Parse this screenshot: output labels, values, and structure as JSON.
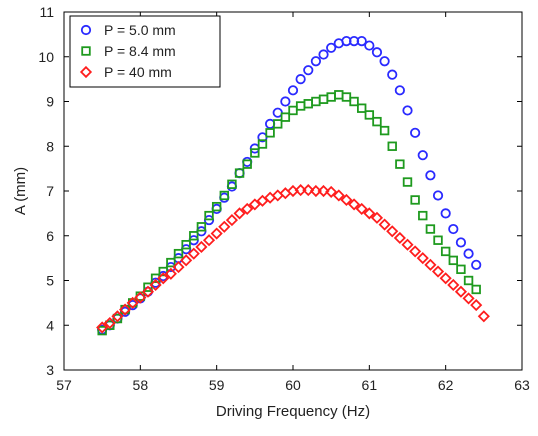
{
  "chart_data": {
    "type": "scatter",
    "title": "",
    "xlabel": "Driving Frequency (Hz)",
    "ylabel": "A (mm)",
    "xlim": [
      57,
      63
    ],
    "ylim": [
      3,
      11
    ],
    "xticks": [
      "57",
      "58",
      "59",
      "60",
      "61",
      "62",
      "63"
    ],
    "yticks": [
      "3",
      "4",
      "5",
      "6",
      "7",
      "8",
      "9",
      "10",
      "11"
    ],
    "grid": false,
    "legend_position": "top-left",
    "series": [
      {
        "name": "P = 5.0 mm",
        "marker": "circle",
        "color": "#2a2aff",
        "points": [
          [
            57.5,
            3.9
          ],
          [
            57.6,
            4.0
          ],
          [
            57.7,
            4.15
          ],
          [
            57.8,
            4.3
          ],
          [
            57.9,
            4.45
          ],
          [
            58.0,
            4.6
          ],
          [
            58.1,
            4.75
          ],
          [
            58.2,
            4.95
          ],
          [
            58.3,
            5.1
          ],
          [
            58.4,
            5.3
          ],
          [
            58.5,
            5.5
          ],
          [
            58.6,
            5.7
          ],
          [
            58.7,
            5.9
          ],
          [
            58.8,
            6.1
          ],
          [
            58.9,
            6.35
          ],
          [
            59.0,
            6.6
          ],
          [
            59.1,
            6.85
          ],
          [
            59.2,
            7.1
          ],
          [
            59.3,
            7.4
          ],
          [
            59.4,
            7.65
          ],
          [
            59.5,
            7.95
          ],
          [
            59.6,
            8.2
          ],
          [
            59.7,
            8.5
          ],
          [
            59.8,
            8.75
          ],
          [
            59.9,
            9.0
          ],
          [
            60.0,
            9.25
          ],
          [
            60.1,
            9.5
          ],
          [
            60.2,
            9.7
          ],
          [
            60.3,
            9.9
          ],
          [
            60.4,
            10.05
          ],
          [
            60.5,
            10.2
          ],
          [
            60.6,
            10.3
          ],
          [
            60.7,
            10.35
          ],
          [
            60.8,
            10.35
          ],
          [
            60.9,
            10.35
          ],
          [
            61.0,
            10.25
          ],
          [
            61.1,
            10.1
          ],
          [
            61.2,
            9.9
          ],
          [
            61.3,
            9.6
          ],
          [
            61.4,
            9.25
          ],
          [
            61.5,
            8.8
          ],
          [
            61.6,
            8.3
          ],
          [
            61.7,
            7.8
          ],
          [
            61.8,
            7.35
          ],
          [
            61.9,
            6.9
          ],
          [
            62.0,
            6.5
          ],
          [
            62.1,
            6.15
          ],
          [
            62.2,
            5.85
          ],
          [
            62.3,
            5.6
          ],
          [
            62.4,
            5.35
          ]
        ]
      },
      {
        "name": "P = 8.4 mm",
        "marker": "square",
        "color": "#1e9a1e",
        "points": [
          [
            57.5,
            3.88
          ],
          [
            57.6,
            4.0
          ],
          [
            57.7,
            4.15
          ],
          [
            57.8,
            4.35
          ],
          [
            57.9,
            4.5
          ],
          [
            58.0,
            4.65
          ],
          [
            58.1,
            4.85
          ],
          [
            58.2,
            5.05
          ],
          [
            58.3,
            5.2
          ],
          [
            58.4,
            5.4
          ],
          [
            58.5,
            5.6
          ],
          [
            58.6,
            5.8
          ],
          [
            58.7,
            6.0
          ],
          [
            58.8,
            6.2
          ],
          [
            58.9,
            6.45
          ],
          [
            59.0,
            6.65
          ],
          [
            59.1,
            6.9
          ],
          [
            59.2,
            7.15
          ],
          [
            59.3,
            7.4
          ],
          [
            59.4,
            7.6
          ],
          [
            59.5,
            7.85
          ],
          [
            59.6,
            8.05
          ],
          [
            59.7,
            8.3
          ],
          [
            59.8,
            8.5
          ],
          [
            59.9,
            8.65
          ],
          [
            60.0,
            8.8
          ],
          [
            60.1,
            8.9
          ],
          [
            60.2,
            8.95
          ],
          [
            60.3,
            9.0
          ],
          [
            60.4,
            9.05
          ],
          [
            60.5,
            9.1
          ],
          [
            60.6,
            9.15
          ],
          [
            60.7,
            9.1
          ],
          [
            60.8,
            9.0
          ],
          [
            60.9,
            8.85
          ],
          [
            61.0,
            8.7
          ],
          [
            61.1,
            8.55
          ],
          [
            61.2,
            8.35
          ],
          [
            61.3,
            8.0
          ],
          [
            61.4,
            7.6
          ],
          [
            61.5,
            7.2
          ],
          [
            61.6,
            6.8
          ],
          [
            61.7,
            6.45
          ],
          [
            61.8,
            6.15
          ],
          [
            61.9,
            5.9
          ],
          [
            62.0,
            5.65
          ],
          [
            62.1,
            5.45
          ],
          [
            62.2,
            5.25
          ],
          [
            62.3,
            5.0
          ],
          [
            62.4,
            4.8
          ]
        ]
      },
      {
        "name": "P = 40 mm",
        "marker": "diamond",
        "color": "#ff1e1e",
        "points": [
          [
            57.5,
            3.95
          ],
          [
            57.6,
            4.05
          ],
          [
            57.7,
            4.2
          ],
          [
            57.8,
            4.35
          ],
          [
            57.9,
            4.5
          ],
          [
            58.0,
            4.62
          ],
          [
            58.1,
            4.75
          ],
          [
            58.2,
            4.9
          ],
          [
            58.3,
            5.05
          ],
          [
            58.4,
            5.15
          ],
          [
            58.5,
            5.3
          ],
          [
            58.6,
            5.45
          ],
          [
            58.7,
            5.6
          ],
          [
            58.8,
            5.75
          ],
          [
            58.9,
            5.9
          ],
          [
            59.0,
            6.05
          ],
          [
            59.1,
            6.2
          ],
          [
            59.2,
            6.35
          ],
          [
            59.3,
            6.5
          ],
          [
            59.4,
            6.6
          ],
          [
            59.5,
            6.7
          ],
          [
            59.6,
            6.78
          ],
          [
            59.7,
            6.85
          ],
          [
            59.8,
            6.9
          ],
          [
            59.9,
            6.95
          ],
          [
            60.0,
            7.0
          ],
          [
            60.1,
            7.02
          ],
          [
            60.2,
            7.02
          ],
          [
            60.3,
            7.0
          ],
          [
            60.4,
            7.0
          ],
          [
            60.5,
            6.98
          ],
          [
            60.6,
            6.9
          ],
          [
            60.7,
            6.8
          ],
          [
            60.8,
            6.7
          ],
          [
            60.9,
            6.6
          ],
          [
            61.0,
            6.5
          ],
          [
            61.1,
            6.4
          ],
          [
            61.2,
            6.25
          ],
          [
            61.3,
            6.1
          ],
          [
            61.4,
            5.95
          ],
          [
            61.5,
            5.8
          ],
          [
            61.6,
            5.65
          ],
          [
            61.7,
            5.5
          ],
          [
            61.8,
            5.35
          ],
          [
            61.9,
            5.2
          ],
          [
            62.0,
            5.05
          ],
          [
            62.1,
            4.9
          ],
          [
            62.2,
            4.75
          ],
          [
            62.3,
            4.6
          ],
          [
            62.4,
            4.45
          ],
          [
            62.5,
            4.2
          ]
        ]
      }
    ]
  }
}
